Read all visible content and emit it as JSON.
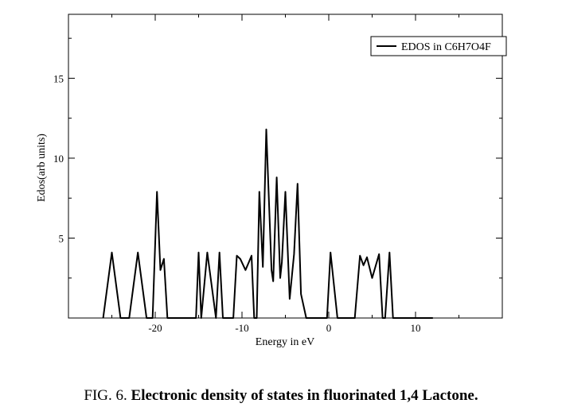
{
  "chart_data": {
    "type": "line",
    "xlabel": "Energy in eV",
    "ylabel": "Edos(arb units)",
    "xlim": [
      -30,
      20
    ],
    "ylim": [
      0,
      19
    ],
    "x_ticks": [
      -20,
      -10,
      0,
      10
    ],
    "y_ticks": [
      5,
      10,
      15
    ],
    "x_tick_labels": [
      "-20",
      "-10",
      "0",
      "10"
    ],
    "y_tick_labels": [
      "5",
      "10",
      "15"
    ],
    "grid": false,
    "legend_position": "top-right",
    "series": [
      {
        "name": "EDOS in C6H7O4F",
        "color": "#000000",
        "x": [
          -26,
          -25,
          -24,
          -23,
          -22,
          -21,
          -20.3,
          -19.8,
          -19.4,
          -19,
          -18.6,
          -18,
          -17,
          -16,
          -15.3,
          -15,
          -14.7,
          -14,
          -13,
          -12.6,
          -12.2,
          -11.8,
          -11,
          -10.6,
          -10.2,
          -9.6,
          -9.2,
          -8.9,
          -8.6,
          -8.3,
          -8,
          -7.6,
          -7.2,
          -6.6,
          -6.4,
          -6,
          -5.6,
          -5.4,
          -5,
          -4.5,
          -4,
          -3.6,
          -3.2,
          -2.6,
          -2.2,
          -1.8,
          -1.4,
          -1,
          -0.6,
          -0.2,
          0.2,
          1,
          2,
          3,
          3.6,
          4,
          4.4,
          5,
          5.8,
          6.2,
          6.5,
          7,
          7.4,
          7.8,
          8.2,
          8.6,
          9,
          9.4,
          9.6,
          10,
          10.5,
          12
        ],
        "y": [
          0,
          4.1,
          0,
          0,
          4.1,
          0,
          0,
          7.9,
          3.0,
          3.7,
          0,
          0,
          0,
          0,
          0,
          4.1,
          0,
          4.1,
          0,
          4.1,
          0,
          0,
          0,
          3.9,
          3.7,
          3.0,
          3.5,
          3.9,
          0,
          0,
          7.9,
          3.2,
          11.8,
          3.0,
          2.3,
          8.8,
          2.5,
          3.5,
          7.9,
          1.2,
          4.0,
          8.4,
          1.5,
          0,
          0,
          0,
          0,
          0,
          0,
          0,
          4.1,
          0,
          0,
          0,
          3.9,
          3.3,
          3.8,
          2.5,
          4.0,
          0,
          0,
          4.1,
          0,
          0,
          0,
          0,
          0,
          0,
          0,
          0,
          0,
          0
        ]
      }
    ]
  },
  "caption": {
    "prefix": "FIG. 6.",
    "title": "Electronic density of states in fluorinated 1,4 Lactone."
  }
}
